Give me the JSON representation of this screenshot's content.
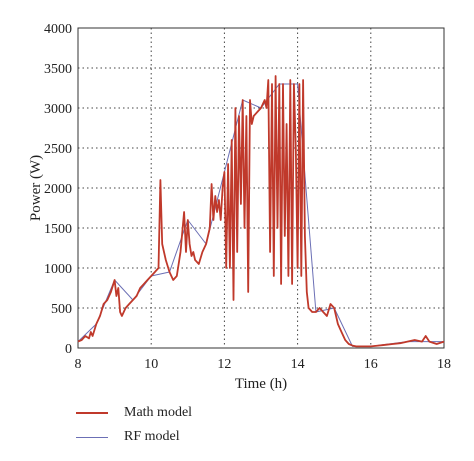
{
  "chart_data": {
    "type": "line",
    "title": "",
    "xlabel": "Time (h)",
    "ylabel": "Power (W)",
    "xlim": [
      8,
      18
    ],
    "ylim": [
      0,
      4000
    ],
    "x_ticks": [
      "8",
      "10",
      "12",
      "14",
      "16",
      "18"
    ],
    "y_ticks": [
      "0",
      "500",
      "1000",
      "1500",
      "2000",
      "2500",
      "3000",
      "3500",
      "4000"
    ],
    "grid": true,
    "legend_position": "bottom-left",
    "series": [
      {
        "name": "Math model",
        "color": "#c0392b",
        "x": [
          8.0,
          8.1,
          8.2,
          8.3,
          8.35,
          8.4,
          8.5,
          8.6,
          8.7,
          8.8,
          8.9,
          9.0,
          9.05,
          9.1,
          9.15,
          9.2,
          9.3,
          9.4,
          9.5,
          9.6,
          9.7,
          9.8,
          9.9,
          10.0,
          10.1,
          10.2,
          10.25,
          10.3,
          10.35,
          10.4,
          10.5,
          10.6,
          10.7,
          10.8,
          10.9,
          10.95,
          11.0,
          11.05,
          11.1,
          11.15,
          11.2,
          11.3,
          11.4,
          11.5,
          11.6,
          11.65,
          11.7,
          11.75,
          11.8,
          11.85,
          11.9,
          11.95,
          12.0,
          12.05,
          12.1,
          12.15,
          12.2,
          12.25,
          12.3,
          12.35,
          12.4,
          12.45,
          12.5,
          12.55,
          12.6,
          12.65,
          12.7,
          12.75,
          12.8,
          12.9,
          13.0,
          13.1,
          13.15,
          13.2,
          13.25,
          13.3,
          13.35,
          13.4,
          13.45,
          13.5,
          13.55,
          13.6,
          13.65,
          13.7,
          13.75,
          13.8,
          13.85,
          13.9,
          13.95,
          14.0,
          14.05,
          14.1,
          14.15,
          14.2,
          14.25,
          14.3,
          14.4,
          14.5,
          14.6,
          14.7,
          14.8,
          14.9,
          15.0,
          15.1,
          15.2,
          15.3,
          15.4,
          15.5,
          15.6,
          15.7,
          15.8,
          15.9,
          16.0,
          16.2,
          16.4,
          16.6,
          16.8,
          17.0,
          17.2,
          17.4,
          17.5,
          17.6,
          17.8,
          18.0
        ],
        "y": [
          80,
          100,
          150,
          120,
          200,
          150,
          300,
          400,
          550,
          600,
          700,
          850,
          650,
          750,
          450,
          400,
          500,
          550,
          600,
          650,
          750,
          800,
          850,
          900,
          950,
          1000,
          2100,
          1300,
          1200,
          1100,
          950,
          850,
          900,
          1200,
          1700,
          1200,
          1600,
          1300,
          1150,
          1200,
          1100,
          1050,
          1200,
          1300,
          1500,
          2050,
          1600,
          1900,
          1700,
          1850,
          1600,
          2000,
          2200,
          1000,
          2300,
          1000,
          2600,
          600,
          3000,
          1200,
          2900,
          1800,
          3100,
          1500,
          2900,
          700,
          3100,
          2800,
          2900,
          2950,
          3000,
          3100,
          3000,
          3350,
          1200,
          3300,
          900,
          3400,
          1500,
          3300,
          800,
          3300,
          1400,
          2800,
          900,
          3350,
          800,
          3300,
          2500,
          1000,
          3300,
          900,
          3350,
          1400,
          700,
          500,
          450,
          450,
          500,
          450,
          400,
          550,
          500,
          300,
          200,
          100,
          50,
          30,
          20,
          20,
          20,
          20,
          20,
          30,
          40,
          50,
          60,
          80,
          100,
          80,
          150,
          80,
          50,
          80
        ]
      },
      {
        "name": "RF model",
        "color": "#6b6fb5",
        "x": [
          8.0,
          8.5,
          9.0,
          9.5,
          10.0,
          10.5,
          11.0,
          11.5,
          12.0,
          12.5,
          13.0,
          13.5,
          14.0,
          14.5,
          15.0,
          15.5,
          16.0,
          17.0,
          18.0
        ],
        "y": [
          80,
          300,
          850,
          600,
          900,
          950,
          1600,
          1300,
          2200,
          3100,
          3000,
          3300,
          3300,
          450,
          500,
          20,
          20,
          80,
          80
        ]
      }
    ]
  }
}
